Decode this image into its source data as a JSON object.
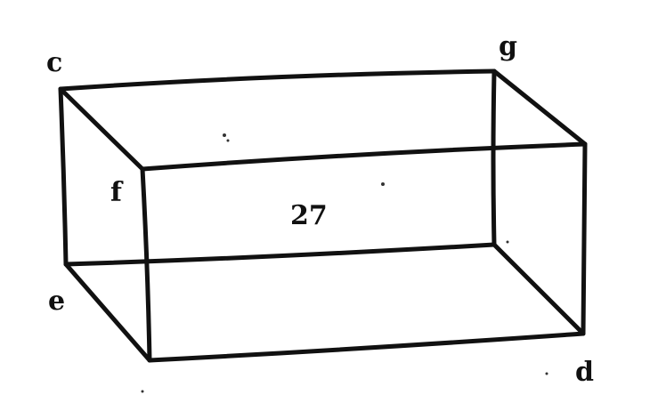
{
  "diagram": {
    "vertex_labels": {
      "top_left": "c",
      "top_right": "g",
      "front_top_left": "f",
      "bottom_left": "e",
      "bottom_right": "d"
    },
    "face_label": "27"
  }
}
